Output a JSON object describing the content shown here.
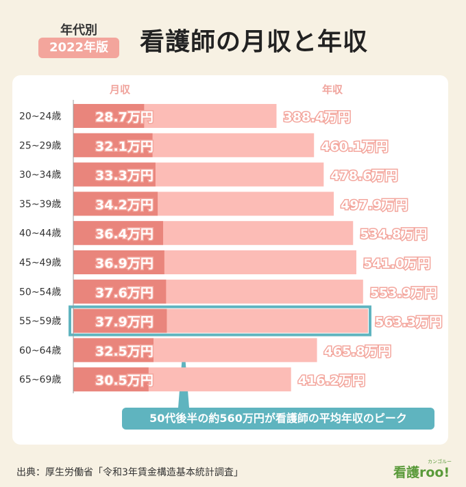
{
  "header": {
    "label_top": "年代別",
    "badge": "2022年版",
    "title": "看護師の月収と年収"
  },
  "chart_data": {
    "type": "bar",
    "categories": [
      "20~24歳",
      "25~29歳",
      "30~34歳",
      "35~39歳",
      "40~44歳",
      "45~49歳",
      "50~54歳",
      "55~59歳",
      "60~64歳",
      "65~69歳"
    ],
    "series": [
      {
        "name": "月収",
        "values": [
          28.7,
          32.1,
          33.3,
          34.2,
          36.4,
          36.9,
          37.6,
          37.9,
          32.5,
          30.5
        ],
        "labels": [
          "28.7万円",
          "32.1万円",
          "33.3万円",
          "34.2万円",
          "36.4万円",
          "36.9万円",
          "37.6万円",
          "37.9万円",
          "32.5万円",
          "30.5万円"
        ]
      },
      {
        "name": "年収",
        "values": [
          388.4,
          460.1,
          478.6,
          497.9,
          534.8,
          541.0,
          553.9,
          563.3,
          465.8,
          416.2
        ],
        "labels": [
          "388.4万円",
          "460.1万円",
          "478.6万円",
          "497.9万円",
          "534.8万円",
          "541.0万円",
          "553.9万円",
          "563.3万円",
          "465.8万円",
          "416.2万円"
        ]
      }
    ],
    "highlight_category": "55~59歳",
    "annotation": "50代後半の約560万円が看護師の平均年収のピーク",
    "colors": {
      "annual": "#fcbcb6",
      "monthly": "#e9857c",
      "highlight": "#5fb4bf",
      "label": "#ffffff",
      "label_outline": "#f3a59c"
    }
  },
  "footer": {
    "source": "出典：厚生労働省「令和3年賃金構造基本統計調査」",
    "logo_main": "看護roo!",
    "logo_sub": "カンゴルー"
  }
}
